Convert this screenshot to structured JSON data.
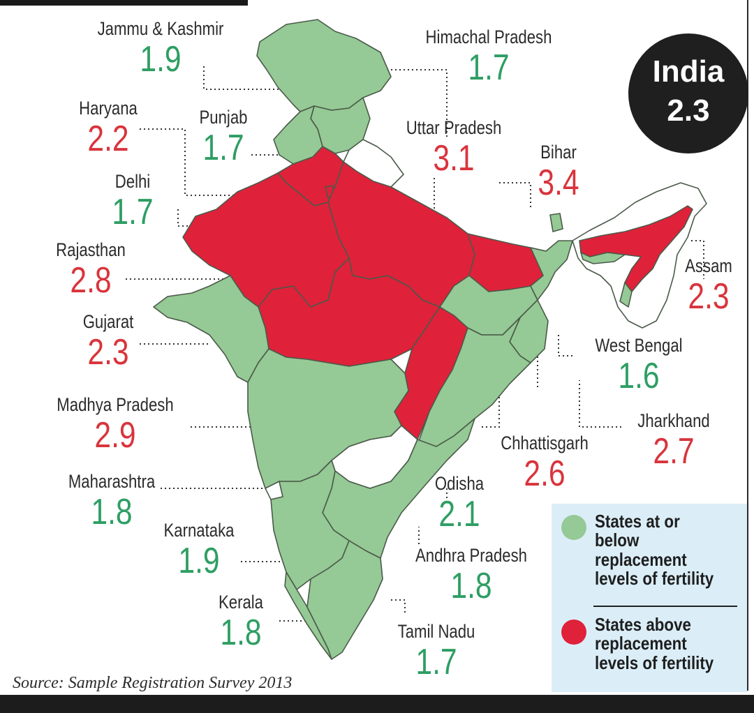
{
  "badge": {
    "line1": "India",
    "line2": "2.3"
  },
  "source": "Source: Sample Registration Survey 2013",
  "colors": {
    "green": "#95c995",
    "red": "#e0213a",
    "white": "#ffffff",
    "border": "#4a5a4a"
  },
  "states": [
    {
      "key": "jk",
      "name": "Jammu & Kashmir",
      "value": "1.9",
      "level": "below"
    },
    {
      "key": "hp",
      "name": "Himachal Pradesh",
      "value": "1.7",
      "level": "below"
    },
    {
      "key": "hr",
      "name": "Haryana",
      "value": "2.2",
      "level": "above"
    },
    {
      "key": "pb",
      "name": "Punjab",
      "value": "1.7",
      "level": "below"
    },
    {
      "key": "up",
      "name": "Uttar Pradesh",
      "value": "3.1",
      "level": "above"
    },
    {
      "key": "br",
      "name": "Bihar",
      "value": "3.4",
      "level": "above"
    },
    {
      "key": "dl",
      "name": "Delhi",
      "value": "1.7",
      "level": "below"
    },
    {
      "key": "rj",
      "name": "Rajasthan",
      "value": "2.8",
      "level": "above"
    },
    {
      "key": "as",
      "name": "Assam",
      "value": "2.3",
      "level": "above"
    },
    {
      "key": "gj",
      "name": "Gujarat",
      "value": "2.3",
      "level": "above"
    },
    {
      "key": "wb",
      "name": "West Bengal",
      "value": "1.6",
      "level": "below"
    },
    {
      "key": "mp",
      "name": "Madhya Pradesh",
      "value": "2.9",
      "level": "above"
    },
    {
      "key": "jh",
      "name": "Jharkhand",
      "value": "2.7",
      "level": "above"
    },
    {
      "key": "cg",
      "name": "Chhattisgarh",
      "value": "2.6",
      "level": "above"
    },
    {
      "key": "mh",
      "name": "Maharashtra",
      "value": "1.8",
      "level": "below"
    },
    {
      "key": "od",
      "name": "Odisha",
      "value": "2.1",
      "level": "below"
    },
    {
      "key": "ka",
      "name": "Karnataka",
      "value": "1.9",
      "level": "below"
    },
    {
      "key": "ap",
      "name": "Andhra Pradesh",
      "value": "1.8",
      "level": "below"
    },
    {
      "key": "kl",
      "name": "Kerala",
      "value": "1.8",
      "level": "below"
    },
    {
      "key": "tn",
      "name": "Tamil Nadu",
      "value": "1.7",
      "level": "below"
    }
  ],
  "legend": {
    "below": "States at or below replacement levels of fertility",
    "above": "States above replacement levels of fertility"
  }
}
